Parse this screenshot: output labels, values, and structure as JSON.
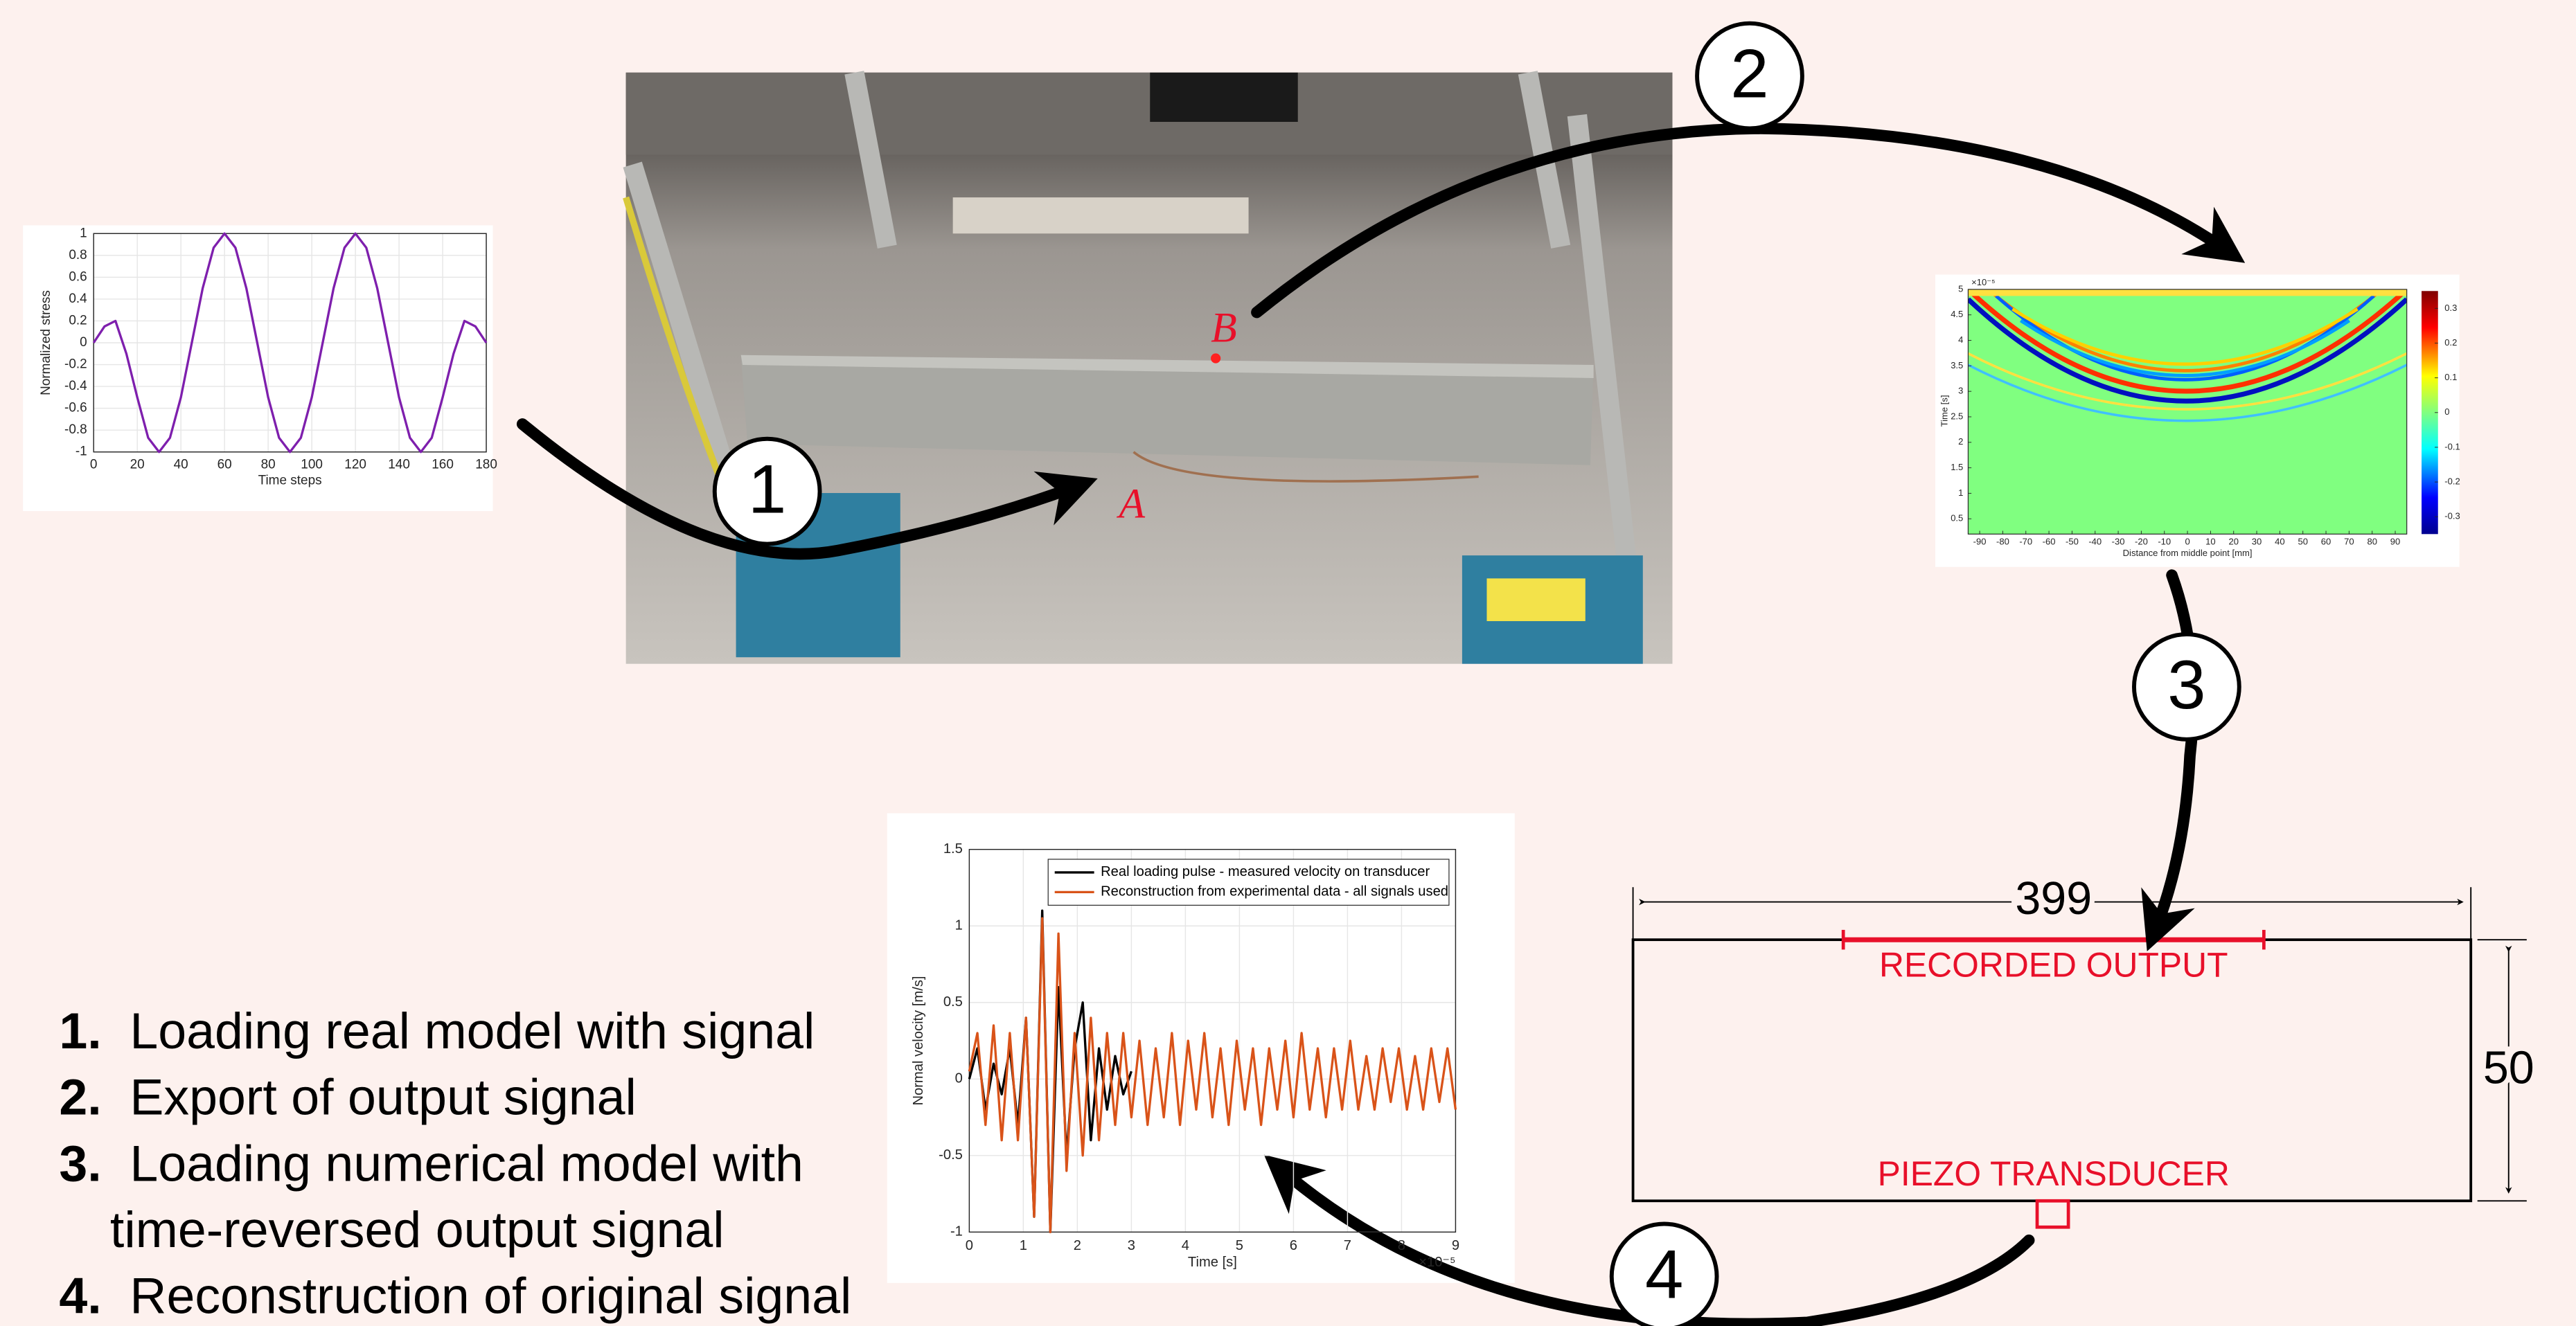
{
  "steps": [
    {
      "number": "1.",
      "lines": [
        "Loading real model with signal"
      ]
    },
    {
      "number": "2.",
      "lines": [
        "Export of output signal"
      ]
    },
    {
      "number": "3.",
      "lines": [
        "Loading numerical model with",
        "time-reversed output signal"
      ]
    },
    {
      "number": "4.",
      "lines": [
        "Reconstruction of original signal"
      ]
    }
  ],
  "badges": [
    "1",
    "2",
    "3",
    "4"
  ],
  "photo": {
    "point_b": "B",
    "point_a": "A"
  },
  "input_chart": {
    "type": "line",
    "ylabel": "Normalized stress",
    "xlabel": "Time steps",
    "xlim": [
      0,
      180
    ],
    "ylim": [
      -1,
      1
    ],
    "xticks": [
      0,
      20,
      40,
      60,
      80,
      100,
      120,
      140,
      160,
      180
    ],
    "yticks": [
      -1,
      -0.8,
      -0.6,
      -0.4,
      -0.2,
      0,
      0.2,
      0.4,
      0.6,
      0.8,
      1
    ],
    "grid": true,
    "series": [
      {
        "color": "#7e1fad",
        "x": [
          0,
          5,
          10,
          15,
          20,
          25,
          30,
          35,
          40,
          45,
          50,
          55,
          60,
          65,
          70,
          75,
          80,
          85,
          90,
          95,
          100,
          105,
          110,
          115,
          120,
          125,
          130,
          135,
          140,
          145,
          150,
          155,
          160,
          165,
          170,
          175,
          180
        ],
        "values": [
          0,
          0.15,
          0.2,
          -0.1,
          -0.5,
          -0.87,
          -1,
          -0.87,
          -0.5,
          0,
          0.5,
          0.87,
          1,
          0.87,
          0.5,
          0,
          -0.5,
          -0.87,
          -1,
          -0.87,
          -0.5,
          0,
          0.5,
          0.87,
          1,
          0.87,
          0.5,
          0,
          -0.5,
          -0.87,
          -1,
          -0.87,
          -0.5,
          -0.1,
          0.2,
          0.15,
          0
        ]
      }
    ]
  },
  "heatmap": {
    "ylabel": "Time [s]",
    "xlabel": "Distance from middle point [mm]",
    "exponent": "×10⁻⁵",
    "xlim": [
      -95,
      95
    ],
    "ylim": [
      0.2,
      5
    ],
    "clim": [
      -0.35,
      0.35
    ],
    "xticks": [
      -90,
      -80,
      -70,
      -60,
      -50,
      -40,
      -30,
      -20,
      -10,
      0,
      10,
      20,
      30,
      40,
      50,
      60,
      70,
      80,
      90
    ],
    "yticks": [
      0.5,
      1,
      1.5,
      2,
      2.5,
      3,
      3.5,
      4,
      4.5,
      5
    ],
    "cticks": [
      -0.3,
      -0.2,
      -0.1,
      0,
      0.1,
      0.2,
      0.3
    ]
  },
  "model": {
    "width_label": "399",
    "height_label": "50",
    "top_label": "RECORDED OUTPUT",
    "bottom_label": "PIEZO TRANSDUCER"
  },
  "output_chart": {
    "type": "line",
    "ylabel": "Normal velocity [m/s]",
    "xlabel": "Time [s]",
    "exponent": "×10⁻⁵",
    "xlim": [
      0,
      9
    ],
    "ylim": [
      -1,
      1.5
    ],
    "xticks": [
      0,
      1,
      2,
      3,
      4,
      5,
      6,
      7,
      8,
      9
    ],
    "yticks": [
      -1,
      -0.5,
      0,
      0.5,
      1,
      1.5
    ],
    "grid": true,
    "series": [
      {
        "name": "Real loading pulse - measured velocity on transducer",
        "color": "#000000",
        "x": [
          0,
          0.15,
          0.3,
          0.45,
          0.6,
          0.75,
          0.9,
          1.05,
          1.2,
          1.35,
          1.5,
          1.65,
          1.8,
          1.95,
          2.1,
          2.25,
          2.4,
          2.55,
          2.7,
          2.85,
          3
        ],
        "values": [
          0,
          0.2,
          -0.2,
          0.1,
          -0.1,
          0.2,
          -0.3,
          0.4,
          -0.9,
          1.1,
          -1,
          0.6,
          -0.5,
          0.2,
          0.5,
          -0.4,
          0.2,
          -0.2,
          0.15,
          -0.1,
          0.05
        ]
      },
      {
        "name": "Reconstruction from experimental data - all signals used",
        "color": "#d95319",
        "x": [
          0,
          0.15,
          0.3,
          0.45,
          0.6,
          0.75,
          0.9,
          1.05,
          1.2,
          1.35,
          1.5,
          1.65,
          1.8,
          1.95,
          2.1,
          2.25,
          2.4,
          2.55,
          2.7,
          2.85,
          3,
          3.15,
          3.3,
          3.45,
          3.6,
          3.75,
          3.9,
          4.05,
          4.2,
          4.35,
          4.5,
          4.65,
          4.8,
          4.95,
          5.1,
          5.25,
          5.4,
          5.55,
          5.7,
          5.85,
          6,
          6.15,
          6.3,
          6.45,
          6.6,
          6.75,
          6.9,
          7.05,
          7.2,
          7.35,
          7.5,
          7.65,
          7.8,
          7.95,
          8.1,
          8.25,
          8.4,
          8.55,
          8.7,
          8.85,
          9
        ],
        "values": [
          0.05,
          0.3,
          -0.3,
          0.35,
          -0.4,
          0.3,
          -0.4,
          0.4,
          -0.9,
          1.05,
          -1,
          0.95,
          -0.6,
          0.3,
          -0.5,
          0.4,
          -0.4,
          0.3,
          -0.3,
          0.3,
          -0.25,
          0.25,
          -0.3,
          0.2,
          -0.25,
          0.3,
          -0.3,
          0.25,
          -0.2,
          0.3,
          -0.25,
          0.2,
          -0.3,
          0.25,
          -0.2,
          0.2,
          -0.3,
          0.2,
          -0.2,
          0.25,
          -0.25,
          0.3,
          -0.2,
          0.2,
          -0.25,
          0.2,
          -0.2,
          0.25,
          -0.2,
          0.15,
          -0.2,
          0.2,
          -0.15,
          0.2,
          -0.2,
          0.15,
          -0.2,
          0.2,
          -0.15,
          0.2,
          -0.2
        ]
      }
    ]
  }
}
